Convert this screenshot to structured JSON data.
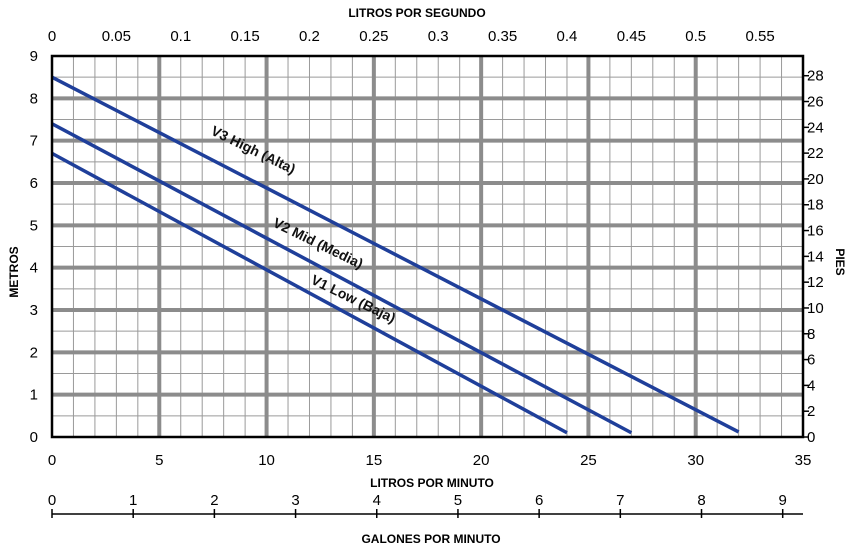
{
  "chart_data": {
    "type": "line",
    "top_axis_label": "LITROS POR SEGUNDO",
    "bottom_axis_label": "LITROS POR MINUTO",
    "second_bottom_axis_label": "GALONES POR MINUTO",
    "left_axis_label": "METROS",
    "right_axis_label": "PIES",
    "x_lpm": {
      "range": [
        0,
        35
      ],
      "ticks": [
        "0",
        "5",
        "10",
        "15",
        "20",
        "25",
        "30",
        "35"
      ],
      "tick_values": [
        0,
        5,
        10,
        15,
        20,
        25,
        30,
        35
      ]
    },
    "x_lps": {
      "ticks": [
        "0",
        "0.05",
        "0.1",
        "0.15",
        "0.2",
        "0.25",
        "0.3",
        "0.35",
        "0.4",
        "0.45",
        "0.5",
        "0.55"
      ],
      "tick_values": [
        0,
        0.05,
        0.1,
        0.15,
        0.2,
        0.25,
        0.3,
        0.35,
        0.4,
        0.45,
        0.5,
        0.55
      ]
    },
    "x_gpm": {
      "range": [
        0,
        9.25
      ],
      "ticks": [
        "0",
        "1",
        "2",
        "3",
        "4",
        "5",
        "6",
        "7",
        "8",
        "9"
      ],
      "tick_values": [
        0,
        1,
        2,
        3,
        4,
        5,
        6,
        7,
        8,
        9
      ]
    },
    "y_meters": {
      "range": [
        0,
        9
      ],
      "ticks": [
        "0",
        "1",
        "2",
        "3",
        "4",
        "5",
        "6",
        "7",
        "8",
        "9"
      ],
      "tick_values": [
        0,
        1,
        2,
        3,
        4,
        5,
        6,
        7,
        8,
        9
      ]
    },
    "y_feet": {
      "ticks": [
        "0",
        "2",
        "4",
        "6",
        "8",
        "10",
        "12",
        "14",
        "16",
        "18",
        "20",
        "22",
        "24",
        "26",
        "28"
      ],
      "tick_values": [
        0,
        2,
        4,
        6,
        8,
        10,
        12,
        14,
        16,
        18,
        20,
        22,
        24,
        26,
        28
      ]
    },
    "grid": true,
    "series": [
      {
        "name": "V3 High (Alta)",
        "label": "V3 High (Alta)",
        "color": "#1f3f9a",
        "x": [
          0,
          32
        ],
        "y": [
          8.5,
          0.12
        ]
      },
      {
        "name": "V2 Mid (Media)",
        "label": "V2 Mid (Media)",
        "color": "#1f3f9a",
        "x": [
          0,
          27
        ],
        "y": [
          7.4,
          0.1
        ]
      },
      {
        "name": "V1 Low (Baja)",
        "label": "V1 Low (Baja)",
        "color": "#1f3f9a",
        "x": [
          0,
          24
        ],
        "y": [
          6.7,
          0.1
        ]
      }
    ]
  }
}
